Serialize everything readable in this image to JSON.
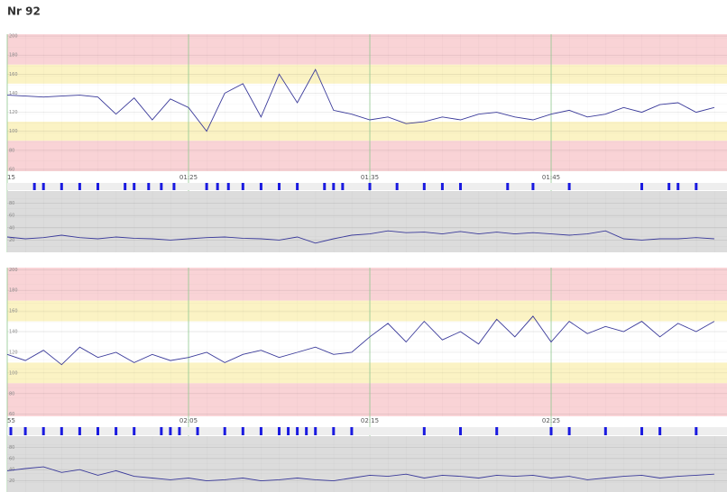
{
  "title": "Nr 92",
  "chart_data": [
    {
      "type": "line",
      "role": "fhr",
      "x": [
        75,
        76,
        77,
        78,
        79,
        80,
        81,
        82,
        83,
        84,
        85,
        86,
        87,
        88,
        89,
        90,
        91,
        92,
        93,
        94,
        95,
        96,
        97,
        98,
        99,
        100,
        101,
        102,
        103,
        104,
        105,
        106,
        107,
        108,
        109,
        110,
        111,
        112,
        113,
        114
      ],
      "values": [
        138,
        137,
        136,
        137,
        138,
        136,
        118,
        135,
        112,
        134,
        125,
        100,
        140,
        150,
        115,
        160,
        130,
        165,
        122,
        118,
        112,
        115,
        108,
        110,
        115,
        112,
        118,
        120,
        115,
        112,
        118,
        122,
        115,
        118,
        125,
        120,
        128,
        130,
        120,
        125
      ],
      "color": "#3a3a9a",
      "xlim": [
        75,
        114.7
      ],
      "xticks": [
        {
          "value": 75,
          "label": "15"
        },
        {
          "value": 85,
          "label": "01:25"
        },
        {
          "value": 95,
          "label": "01:35"
        },
        {
          "value": 105,
          "label": "01:45"
        }
      ],
      "ylim": [
        58,
        202
      ],
      "yticks": [
        60,
        80,
        100,
        120,
        140,
        160,
        180,
        200
      ],
      "bands": [
        {
          "from": 170,
          "to": 202,
          "color": "#f9d3d6"
        },
        {
          "from": 150,
          "to": 170,
          "color": "#fbf3c4"
        },
        {
          "from": 110,
          "to": 150,
          "color": "#ffffff"
        },
        {
          "from": 90,
          "to": 110,
          "color": "#fbf3c4"
        },
        {
          "from": 58,
          "to": 90,
          "color": "#f9d3d6"
        }
      ]
    },
    {
      "type": "line",
      "role": "toco",
      "x": [
        75,
        76,
        77,
        78,
        79,
        80,
        81,
        82,
        83,
        84,
        85,
        86,
        87,
        88,
        89,
        90,
        91,
        92,
        93,
        94,
        95,
        96,
        97,
        98,
        99,
        100,
        101,
        102,
        103,
        104,
        105,
        106,
        107,
        108,
        109,
        110,
        111,
        112,
        113,
        114
      ],
      "values": [
        25,
        22,
        24,
        28,
        24,
        22,
        25,
        23,
        22,
        20,
        22,
        24,
        25,
        23,
        22,
        20,
        25,
        15,
        22,
        28,
        30,
        35,
        32,
        33,
        30,
        34,
        30,
        33,
        30,
        32,
        30,
        28,
        30,
        35,
        22,
        20,
        22,
        22,
        24,
        22
      ],
      "color": "#3a3a9a",
      "xlim": [
        75,
        114.7
      ],
      "ylim": [
        0,
        100
      ],
      "yticks": [
        20,
        40,
        60,
        80
      ],
      "background": "#dcdcdc",
      "events": [
        76.5,
        77,
        78,
        79,
        80,
        81.5,
        82,
        82.8,
        83.5,
        84.2,
        86,
        86.6,
        87.2,
        88,
        89,
        90,
        91,
        92.5,
        93,
        93.5,
        95,
        96.5,
        98,
        99,
        100,
        102.6,
        104,
        106,
        110,
        111.5,
        112,
        113
      ],
      "event_color": "#1a1ae0"
    },
    {
      "type": "line",
      "role": "fhr",
      "x": [
        115,
        116,
        117,
        118,
        119,
        120,
        121,
        122,
        123,
        124,
        125,
        126,
        127,
        128,
        129,
        130,
        131,
        132,
        133,
        134,
        135,
        136,
        137,
        138,
        139,
        140,
        141,
        142,
        143,
        144,
        145,
        146,
        147,
        148,
        149,
        150,
        151,
        152,
        153,
        154
      ],
      "values": [
        118,
        112,
        122,
        108,
        125,
        115,
        120,
        110,
        118,
        112,
        115,
        120,
        110,
        118,
        122,
        115,
        120,
        125,
        118,
        120,
        135,
        148,
        130,
        150,
        132,
        140,
        128,
        152,
        135,
        155,
        130,
        150,
        138,
        145,
        140,
        150,
        135,
        148,
        140,
        150
      ],
      "color": "#3a3a9a",
      "xlim": [
        115,
        154.7
      ],
      "xticks": [
        {
          "value": 115,
          "label": "55"
        },
        {
          "value": 125,
          "label": "02:05"
        },
        {
          "value": 135,
          "label": "02:15"
        },
        {
          "value": 145,
          "label": "02:25"
        }
      ],
      "ylim": [
        58,
        202
      ],
      "yticks": [
        60,
        80,
        100,
        120,
        140,
        160,
        180,
        200
      ],
      "bands": [
        {
          "from": 170,
          "to": 202,
          "color": "#f9d3d6"
        },
        {
          "from": 150,
          "to": 170,
          "color": "#fbf3c4"
        },
        {
          "from": 110,
          "to": 150,
          "color": "#ffffff"
        },
        {
          "from": 90,
          "to": 110,
          "color": "#fbf3c4"
        },
        {
          "from": 58,
          "to": 90,
          "color": "#f9d3d6"
        }
      ]
    },
    {
      "type": "line",
      "role": "toco",
      "x": [
        115,
        116,
        117,
        118,
        119,
        120,
        121,
        122,
        123,
        124,
        125,
        126,
        127,
        128,
        129,
        130,
        131,
        132,
        133,
        134,
        135,
        136,
        137,
        138,
        139,
        140,
        141,
        142,
        143,
        144,
        145,
        146,
        147,
        148,
        149,
        150,
        151,
        152,
        153,
        154
      ],
      "values": [
        38,
        42,
        45,
        35,
        40,
        30,
        38,
        28,
        25,
        22,
        25,
        20,
        22,
        25,
        20,
        22,
        25,
        22,
        20,
        25,
        30,
        28,
        32,
        25,
        30,
        28,
        25,
        30,
        28,
        30,
        25,
        28,
        22,
        25,
        28,
        30,
        25,
        28,
        30,
        32
      ],
      "color": "#3a3a9a",
      "xlim": [
        115,
        154.7
      ],
      "ylim": [
        0,
        100
      ],
      "yticks": [
        20,
        40,
        60,
        80
      ],
      "background": "#dcdcdc",
      "events": [
        115.2,
        116,
        117,
        118,
        119,
        120,
        121,
        122,
        123.5,
        124,
        124.5,
        125.5,
        127,
        128,
        129,
        130,
        130.5,
        131,
        131.5,
        132,
        133,
        134,
        138,
        140,
        142,
        145,
        146,
        148,
        150,
        151,
        153
      ],
      "event_color": "#1a1ae0"
    }
  ]
}
